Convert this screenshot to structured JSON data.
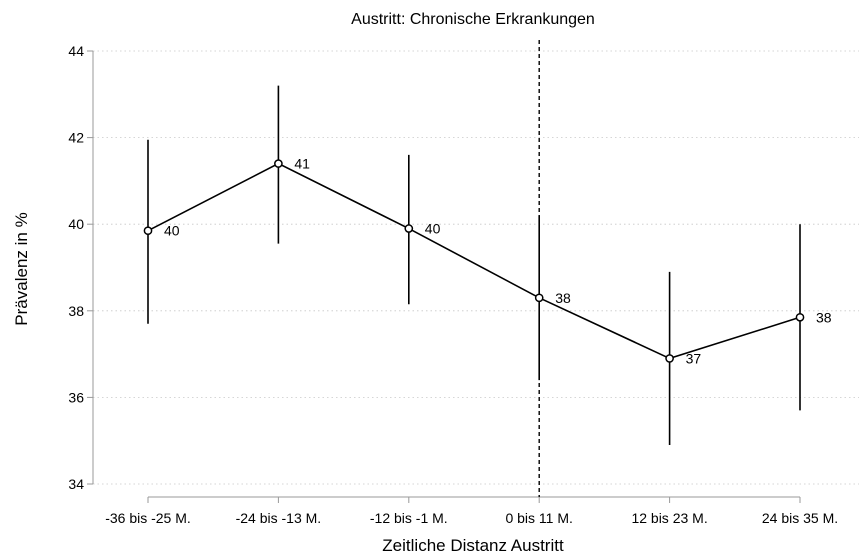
{
  "chart_data": {
    "type": "line",
    "title": "Austritt: Chronische Erkrankungen",
    "xlabel": "Zeitliche Distanz Austritt",
    "ylabel": "Prävalenz in %",
    "categories": [
      "-36 bis -25 M.",
      "-24 bis -13 M.",
      "-12 bis -1 M.",
      "0 bis 11 M.",
      "12 bis 23 M.",
      "24 bis 35 M."
    ],
    "series": [
      {
        "values": [
          39.85,
          41.4,
          39.9,
          38.3,
          36.9,
          37.85
        ],
        "ci_lower": [
          37.7,
          39.55,
          38.15,
          36.4,
          34.9,
          35.7
        ],
        "ci_upper": [
          41.95,
          43.2,
          41.6,
          40.2,
          38.9,
          40.0
        ],
        "data_labels": [
          "40",
          "41",
          "40",
          "38",
          "37",
          "38"
        ]
      }
    ],
    "ylim": [
      34,
      44
    ],
    "yticks": [
      34,
      36,
      38,
      40,
      42,
      44
    ],
    "reference_line_category": "0 bis 11 M.",
    "grid": true,
    "legend": "none"
  }
}
